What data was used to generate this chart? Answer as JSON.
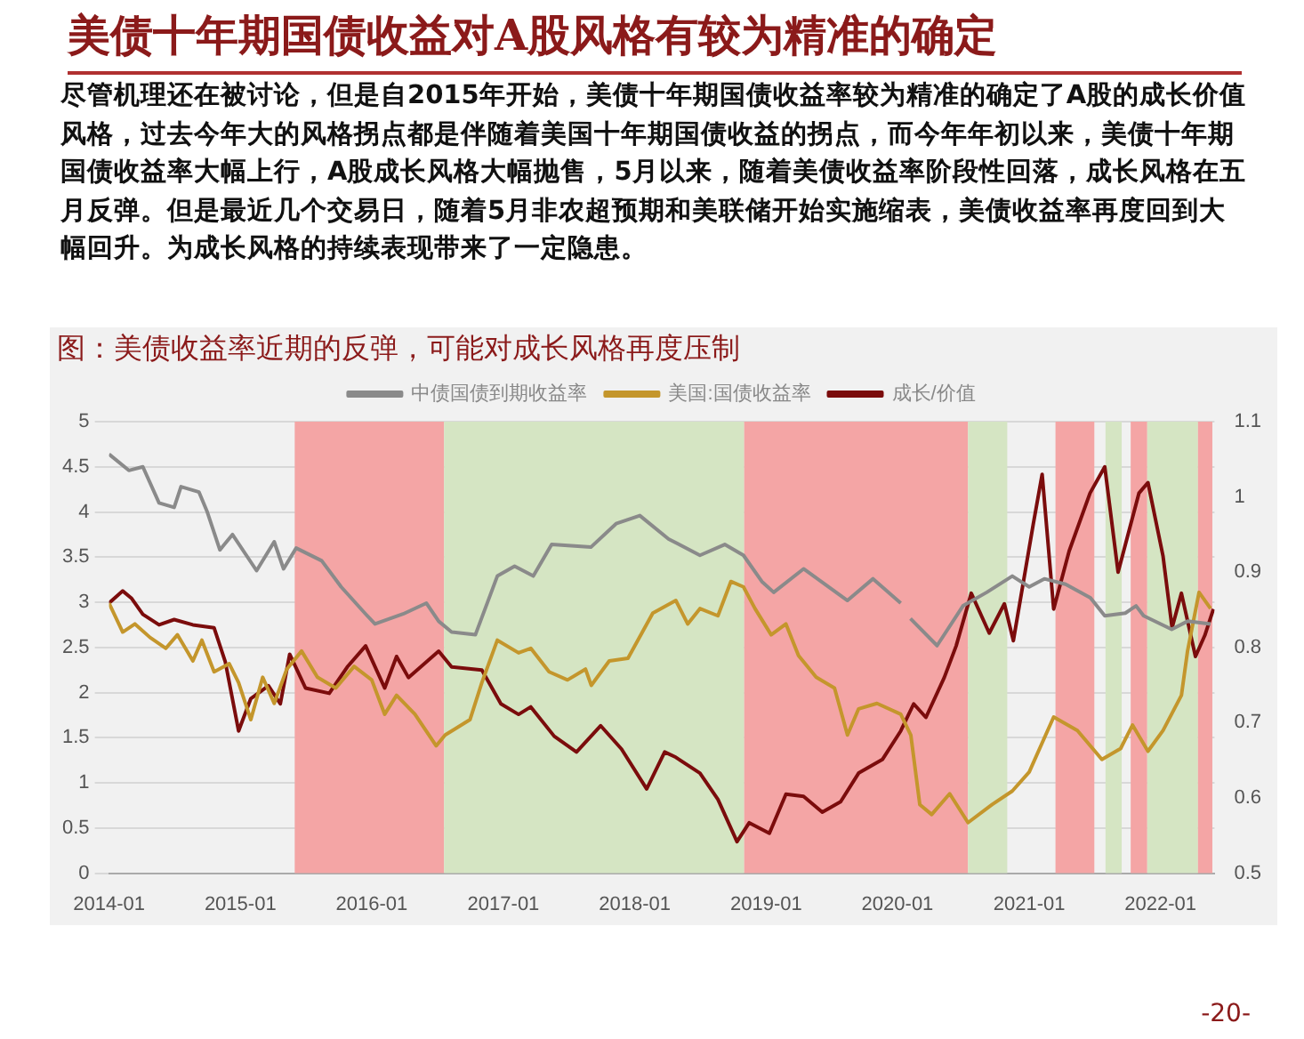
{
  "chart_data": {
    "type": "line",
    "title": "美债十年期国债收益对A股风格有较为精准的确定",
    "subtitle": "图：美债收益率近期的反弹，可能对成长风格再度压制",
    "annotations": [
      "尽管机理还在被讨论，但是自2015年开始，美债十年期国债收益率较为精准的确定了A股的成长价值风格，过去今年大的风格拐点都是伴随着美国十年期国债收益的拐点，而今年年初以来，美债十年期国债收益率大幅上行，A股成长风格大幅抛售，5月以来，随着美债收益率阶段性回落，成长风格在五月反弹。但是最近几个交易日，随着5月非农超预期和美联储开始实施缩表，美债收益率再度回到大幅回升。为成长风格的持续表现带来了一定隐患。",
      "-20-"
    ],
    "xlim": [
      "2014-01-01",
      "2022-05-31"
    ],
    "xticks": [
      "2014-01",
      "2015-01",
      "2016-01",
      "2017-01",
      "2018-01",
      "2019-01",
      "2020-01",
      "2021-01",
      "2022-01"
    ],
    "ylim": [
      0,
      5
    ],
    "yticks": [
      0,
      0.5,
      1,
      1.5,
      2,
      2.5,
      3,
      3.5,
      4,
      4.5,
      5
    ],
    "y2lim": [
      0.5,
      1.1
    ],
    "y2ticks": [
      0.5,
      0.6,
      0.7,
      0.8,
      0.9,
      1,
      1.1
    ],
    "grid": "y",
    "legend": "top",
    "marker": "none",
    "line_style": "solid",
    "bands": [
      {
        "axis": "x",
        "from": "2015-06-01",
        "to": "2016-07-20",
        "color": "#f4a5a5"
      },
      {
        "axis": "x",
        "from": "2016-07-20",
        "to": "2018-11-01",
        "color": "#d5e5c3"
      },
      {
        "axis": "x",
        "from": "2018-11-01",
        "to": "2020-07-15",
        "color": "#f4a5a5"
      },
      {
        "axis": "x",
        "from": "2020-07-15",
        "to": "2020-11-01",
        "color": "#d5e5c3"
      },
      {
        "axis": "x",
        "from": "2021-03-15",
        "to": "2021-07-01",
        "color": "#f4a5a5"
      },
      {
        "axis": "x",
        "from": "2021-08-01",
        "to": "2021-09-15",
        "color": "#d5e5c3"
      },
      {
        "axis": "x",
        "from": "2021-10-10",
        "to": "2021-11-25",
        "color": "#f4a5a5"
      },
      {
        "axis": "x",
        "from": "2021-11-25",
        "to": "2022-04-15",
        "color": "#d5e5c3"
      },
      {
        "axis": "x",
        "from": "2022-04-15",
        "to": "2022-05-25",
        "color": "#f4a5a5"
      }
    ],
    "series": [
      {
        "name": "中债国债到期收益率",
        "color": "#8a8a8a",
        "x": [
          "2014-01-01",
          "2014-02-25",
          "2014-04-05",
          "2014-05-20",
          "2014-07-01",
          "2014-07-20",
          "2014-09-08",
          "2014-10-01",
          "2014-11-05",
          "2014-12-10",
          "2015-02-15",
          "2015-04-05",
          "2015-05-01",
          "2015-06-05",
          "2015-08-15",
          "2015-10-08",
          "2015-12-15",
          "2016-01-10",
          "2016-03-28",
          "2016-06-01",
          "2016-07-05",
          "2016-08-10",
          "2016-10-15",
          "2016-12-15",
          "2017-02-01",
          "2017-03-25",
          "2017-05-15",
          "2017-09-01",
          "2017-11-10",
          "2018-01-15",
          "2018-04-05",
          "2018-07-01",
          "2018-09-08",
          "2018-10-30",
          "2018-12-20",
          "2019-01-22",
          "2019-04-15",
          "2019-08-15",
          "2019-10-25",
          "2020-01-10",
          "2020-01-24",
          "2020-02-06",
          "2020-04-20",
          "2020-07-01",
          "2020-09-05",
          "2020-11-15",
          "2021-01-01",
          "2021-02-12",
          "2021-04-12",
          "2021-06-20",
          "2021-07-30",
          "2021-09-25",
          "2021-10-25",
          "2021-11-15",
          "2022-02-01",
          "2022-03-17",
          "2022-05-20"
        ],
        "values": [
          4.64,
          4.46,
          4.5,
          4.1,
          4.05,
          4.28,
          4.22,
          4.0,
          3.58,
          3.75,
          3.35,
          3.67,
          3.37,
          3.6,
          3.46,
          3.17,
          2.87,
          2.76,
          2.87,
          2.99,
          2.79,
          2.67,
          2.64,
          3.29,
          3.4,
          3.29,
          3.64,
          3.61,
          3.87,
          3.96,
          3.7,
          3.52,
          3.64,
          3.52,
          3.23,
          3.11,
          3.37,
          3.02,
          3.26,
          2.99,
          null,
          2.82,
          2.52,
          2.96,
          3.11,
          3.29,
          3.17,
          3.26,
          3.2,
          3.05,
          2.85,
          2.88,
          2.96,
          2.85,
          2.7,
          2.79,
          2.76
        ]
      },
      {
        "name": "美国:国债收益率",
        "color": "#c4962c",
        "x": [
          "2014-01-01",
          "2014-02-08",
          "2014-03-14",
          "2014-04-25",
          "2014-06-08",
          "2014-07-10",
          "2014-08-22",
          "2014-09-16",
          "2014-10-20",
          "2014-12-01",
          "2014-12-27",
          "2015-01-30",
          "2015-03-04",
          "2015-04-05",
          "2015-05-10",
          "2015-06-20",
          "2015-08-03",
          "2015-09-23",
          "2015-11-13",
          "2016-01-01",
          "2016-02-06",
          "2016-03-10",
          "2016-04-30",
          "2016-06-28",
          "2016-07-23",
          "2016-09-30",
          "2016-11-02",
          "2016-12-15",
          "2017-02-12",
          "2017-03-18",
          "2017-05-08",
          "2017-06-28",
          "2017-08-17",
          "2017-09-02",
          "2017-10-22",
          "2017-12-13",
          "2018-02-20",
          "2018-04-25",
          "2018-05-28",
          "2018-07-01",
          "2018-08-20",
          "2018-09-25",
          "2018-10-30",
          "2018-12-01",
          "2019-01-15",
          "2019-02-25",
          "2019-04-01",
          "2019-05-20",
          "2019-07-10",
          "2019-08-15",
          "2019-09-15",
          "2019-11-05",
          "2020-01-10",
          "2020-02-07",
          "2020-03-03",
          "2020-04-05",
          "2020-05-25",
          "2020-07-15",
          "2020-09-20",
          "2020-11-15",
          "2021-01-01",
          "2021-03-10",
          "2021-05-15",
          "2021-07-22",
          "2021-09-12",
          "2021-10-15",
          "2021-11-27",
          "2022-01-08",
          "2022-02-28",
          "2022-03-17",
          "2022-04-18",
          "2022-05-20"
        ],
        "values": [
          2.99,
          2.67,
          2.76,
          2.61,
          2.49,
          2.64,
          2.35,
          2.58,
          2.23,
          2.32,
          2.11,
          1.7,
          2.17,
          1.88,
          2.26,
          2.46,
          2.17,
          2.05,
          2.29,
          2.14,
          1.76,
          1.97,
          1.76,
          1.41,
          1.53,
          1.7,
          2.11,
          2.58,
          2.44,
          2.49,
          2.23,
          2.14,
          2.26,
          2.08,
          2.35,
          2.38,
          2.88,
          3.02,
          2.76,
          2.93,
          2.85,
          3.23,
          3.17,
          2.93,
          2.64,
          2.76,
          2.41,
          2.17,
          2.05,
          1.53,
          1.82,
          1.88,
          1.76,
          1.53,
          0.76,
          0.65,
          0.88,
          0.56,
          0.76,
          0.91,
          1.12,
          1.73,
          1.58,
          1.26,
          1.38,
          1.64,
          1.35,
          1.58,
          1.97,
          2.46,
          3.11,
          2.93
        ]
      },
      {
        "name": "成长/价值",
        "color": "#7b0c0c",
        "axis": "y2",
        "x": [
          "2014-01-01",
          "2014-02-08",
          "2014-03-05",
          "2014-04-05",
          "2014-05-20",
          "2014-07-01",
          "2014-08-22",
          "2014-10-20",
          "2014-11-20",
          "2014-12-27",
          "2015-01-30",
          "2015-03-20",
          "2015-04-22",
          "2015-05-18",
          "2015-07-01",
          "2015-09-05",
          "2015-10-25",
          "2015-12-15",
          "2016-02-06",
          "2016-03-10",
          "2016-04-12",
          "2016-07-05",
          "2016-08-10",
          "2016-11-02",
          "2016-12-25",
          "2017-02-12",
          "2017-03-18",
          "2017-05-22",
          "2017-07-23",
          "2017-09-28",
          "2017-11-25",
          "2018-02-03",
          "2018-03-25",
          "2018-04-25",
          "2018-07-01",
          "2018-08-20",
          "2018-10-12",
          "2018-11-15",
          "2019-01-10",
          "2019-02-25",
          "2019-04-15",
          "2019-06-06",
          "2019-07-27",
          "2019-09-15",
          "2019-11-20",
          "2020-01-10",
          "2020-02-15",
          "2020-03-20",
          "2020-05-10",
          "2020-06-12",
          "2020-07-24",
          "2020-09-12",
          "2020-10-24",
          "2020-11-18",
          "2021-01-12",
          "2021-02-06",
          "2021-03-10",
          "2021-04-22",
          "2021-06-19",
          "2021-07-30",
          "2021-09-05",
          "2021-11-02",
          "2021-11-27",
          "2022-01-08",
          "2022-02-02",
          "2022-02-28",
          "2022-04-08",
          "2022-05-04",
          "2022-05-28"
        ],
        "values": [
          0.859,
          0.875,
          0.865,
          0.844,
          0.83,
          0.837,
          0.83,
          0.826,
          0.781,
          0.689,
          0.732,
          0.749,
          0.725,
          0.791,
          0.746,
          0.739,
          0.774,
          0.802,
          0.746,
          0.788,
          0.76,
          0.795,
          0.774,
          0.77,
          0.725,
          0.711,
          0.721,
          0.682,
          0.661,
          0.696,
          0.665,
          0.612,
          0.661,
          0.654,
          0.633,
          0.598,
          0.542,
          0.567,
          0.553,
          0.605,
          0.602,
          0.581,
          0.595,
          0.633,
          0.651,
          0.689,
          0.725,
          0.707,
          0.76,
          0.802,
          0.872,
          0.819,
          0.858,
          0.809,
          0.963,
          1.03,
          0.851,
          0.928,
          1.005,
          1.04,
          0.9,
          1.005,
          1.019,
          0.921,
          0.826,
          0.872,
          0.788,
          0.816,
          0.851
        ]
      }
    ]
  }
}
